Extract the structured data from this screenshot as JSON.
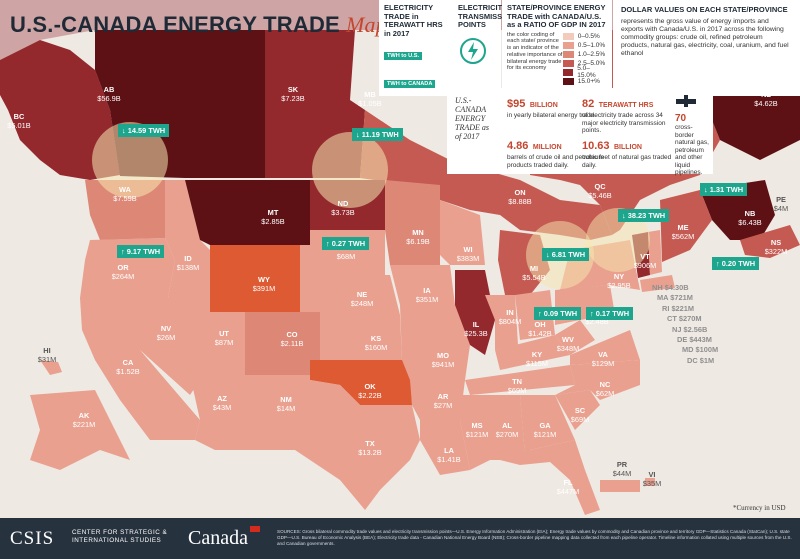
{
  "title": {
    "main": "U.S.-CANADA ENERGY TRADE",
    "map_word": "Map"
  },
  "legend": {
    "electricity_trade_title": "ELECTRICITY TRADE in TERAWATT HRS in 2017",
    "twh_to_us": "TWH to U.S.",
    "twh_to_canada": "TWH to CANADA",
    "transmission_title": "ELECTRICITY TRANSMISSION POINTS",
    "ratio_title": "STATE/PROVINCE ENERGY TRADE with CANADA/U.S. as a RATIO OF GDP IN 2017",
    "ratio_text": "the color coding of each state/ province is an indicator of the relative importance of bilateral energy trade for its economy",
    "ratio_bins": [
      {
        "label": "0–0.5%",
        "color": "#f2cbbd"
      },
      {
        "label": "0.5–1.0%",
        "color": "#e9a08f"
      },
      {
        "label": "1.0–2.5%",
        "color": "#dd8877"
      },
      {
        "label": "2.5–5.0%",
        "color": "#c55a52"
      },
      {
        "label": "5.0–15.0%",
        "color": "#93282d"
      },
      {
        "label": "15.0+%",
        "color": "#5e1115"
      }
    ],
    "dollar_title": "DOLLAR VALUES ON EACH STATE/PROVINCE",
    "dollar_text": "represents the gross value of energy imports and exports with Canada/U.S. in 2017 across the following commodity groups: crude oil, refined petroleum products, natural gas, electricity, coal, uranium, and fuel ethanol"
  },
  "stats": {
    "heading": "U.S.-CANADA ENERGY TRADE as of 2017",
    "items": [
      {
        "value": "$95",
        "unit": "BILLION",
        "text": "in yearly bilateral energy trade."
      },
      {
        "value": "82",
        "unit": "TERAWATT HRS",
        "text": "of electricity trade across 34 major electricity transmission points."
      },
      {
        "value": "70",
        "unit": "",
        "text": "cross-border natural gas, petroleum and other liquid pipelines."
      },
      {
        "value": "4.86",
        "unit": "MILLION",
        "text": "barrels of crude oil and petroleum products traded daily."
      },
      {
        "value": "10.63",
        "unit": "BILLION",
        "text": "cubic feet of natural gas traded daily."
      }
    ]
  },
  "regions": [
    {
      "abbr": "BC",
      "value": "$5.01B"
    },
    {
      "abbr": "AB",
      "value": "$56.9B"
    },
    {
      "abbr": "SK",
      "value": "$7.23B"
    },
    {
      "abbr": "MB",
      "value": "$1.05B"
    },
    {
      "abbr": "ON",
      "value": "$8.88B"
    },
    {
      "abbr": "QC",
      "value": "$5.46B"
    },
    {
      "abbr": "NL",
      "value": "$4.62B"
    },
    {
      "abbr": "NB",
      "value": "$6.43B"
    },
    {
      "abbr": "NS",
      "value": "$322M"
    },
    {
      "abbr": "PE",
      "value": "$4M"
    },
    {
      "abbr": "WA",
      "value": "$7.59B"
    },
    {
      "abbr": "OR",
      "value": "$264M"
    },
    {
      "abbr": "CA",
      "value": "$1.52B"
    },
    {
      "abbr": "NV",
      "value": "$26M"
    },
    {
      "abbr": "ID",
      "value": "$138M"
    },
    {
      "abbr": "MT",
      "value": "$2.85B"
    },
    {
      "abbr": "WY",
      "value": "$391M"
    },
    {
      "abbr": "UT",
      "value": "$87M"
    },
    {
      "abbr": "CO",
      "value": "$2.11B"
    },
    {
      "abbr": "AZ",
      "value": "$43M"
    },
    {
      "abbr": "NM",
      "value": "$14M"
    },
    {
      "abbr": "ND",
      "value": "$3.73B"
    },
    {
      "abbr": "SD",
      "value": "$68M"
    },
    {
      "abbr": "NE",
      "value": "$248M"
    },
    {
      "abbr": "KS",
      "value": "$160M"
    },
    {
      "abbr": "OK",
      "value": "$2.22B"
    },
    {
      "abbr": "TX",
      "value": "$13.2B"
    },
    {
      "abbr": "MN",
      "value": "$6.19B"
    },
    {
      "abbr": "IA",
      "value": "$351M"
    },
    {
      "abbr": "MO",
      "value": "$941M"
    },
    {
      "abbr": "AR",
      "value": "$27M"
    },
    {
      "abbr": "LA",
      "value": "$1.41B"
    },
    {
      "abbr": "WI",
      "value": "$383M"
    },
    {
      "abbr": "IL",
      "value": "$25.3B"
    },
    {
      "abbr": "MI",
      "value": "$5.54B"
    },
    {
      "abbr": "IN",
      "value": "$804M"
    },
    {
      "abbr": "OH",
      "value": "$1.42B"
    },
    {
      "abbr": "KY",
      "value": "$115M"
    },
    {
      "abbr": "TN",
      "value": "$69M"
    },
    {
      "abbr": "MS",
      "value": "$121M"
    },
    {
      "abbr": "AL",
      "value": "$270M"
    },
    {
      "abbr": "GA",
      "value": "$121M"
    },
    {
      "abbr": "FL",
      "value": "$447M"
    },
    {
      "abbr": "SC",
      "value": "$69M"
    },
    {
      "abbr": "NC",
      "value": "$62M"
    },
    {
      "abbr": "VA",
      "value": "$129M"
    },
    {
      "abbr": "WV",
      "value": "$348M"
    },
    {
      "abbr": "PA",
      "value": "$2.48B"
    },
    {
      "abbr": "NY",
      "value": "$2.95B"
    },
    {
      "abbr": "VT",
      "value": "$906M"
    },
    {
      "abbr": "ME",
      "value": "$562M"
    },
    {
      "abbr": "HI",
      "value": "$31M"
    },
    {
      "abbr": "AK",
      "value": "$221M"
    },
    {
      "abbr": "PR",
      "value": "$44M"
    },
    {
      "abbr": "VI",
      "value": "$35M"
    }
  ],
  "small_states": [
    "NH $4.30B",
    "MA $721M",
    "RI $221M",
    "CT $270M",
    "NJ $2.56B",
    "DE $443M",
    "MD $100M",
    "DC $1M"
  ],
  "electricity_flows": [
    {
      "label": "14.59 TWH",
      "direction": "down"
    },
    {
      "label": "11.19 TWH",
      "direction": "down"
    },
    {
      "label": "9.17 TWH",
      "direction": "up"
    },
    {
      "label": "0.27 TWH",
      "direction": "up"
    },
    {
      "label": "6.81 TWH",
      "direction": "down"
    },
    {
      "label": "38.23 TWH",
      "direction": "down"
    },
    {
      "label": "1.31 TWH",
      "direction": "down"
    },
    {
      "label": "0.20 TWH",
      "direction": "up"
    },
    {
      "label": "0.09 TWH",
      "direction": "up"
    },
    {
      "label": "0.17 TWH",
      "direction": "up"
    }
  ],
  "currency_note": "*Currency in USD",
  "footer": {
    "org": "CSIS",
    "org_sub_1": "CENTER FOR STRATEGIC &",
    "org_sub_2": "INTERNATIONAL STUDIES",
    "gov": "Canada",
    "sources": "SOURCES: Gross bilateral commodity trade values and electricity transmission points—U.S. Energy Information Administration (EIA); Energy trade values by commodity and Canadian province and territory GDP—Statistics Canada (StatCan); U.S. state GDP—U.S. Bureau of Economic Analysis (BEA); Electricity trade data - Canadian National Energy Board (NEB); Cross-border pipeline mapping data collected from each pipeline operator. Timeline information collated using multiple sources from the U.S. and Canadian governments."
  },
  "colors": {
    "teal": "#1ea58d",
    "accent": "#c4462e",
    "ocean": "#efe9e3",
    "footer": "#27323f"
  }
}
